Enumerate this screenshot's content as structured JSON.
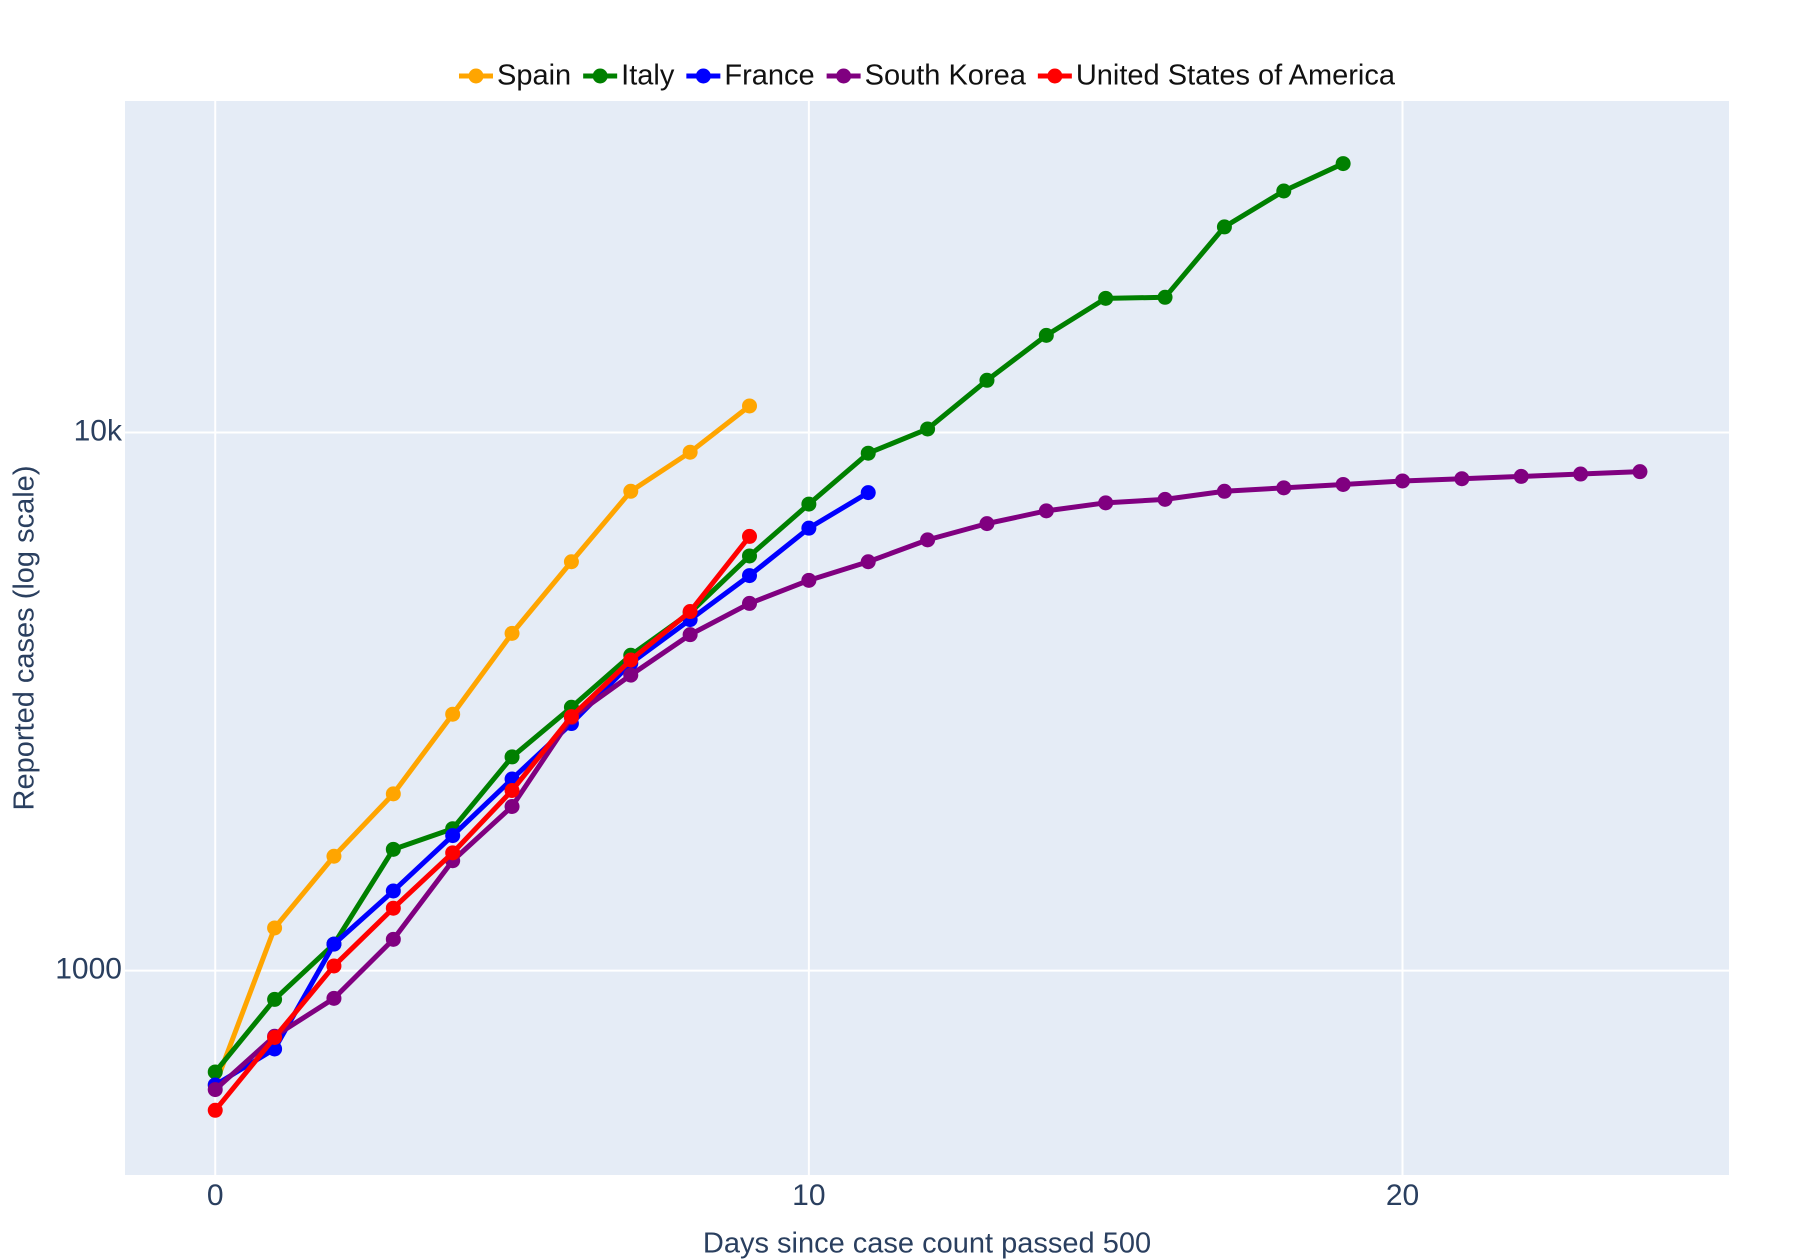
{
  "chart_data": {
    "type": "line",
    "log_y": true,
    "grid": true,
    "legend_position": "top",
    "xlabel": "Days since case count passed 500",
    "ylabel": "Reported cases (log scale)",
    "x": [
      0,
      1,
      2,
      3,
      4,
      5,
      6,
      7,
      8,
      9,
      10,
      11,
      12,
      13,
      14,
      15,
      16,
      17,
      18,
      19,
      20,
      21,
      22,
      23,
      24
    ],
    "xlim": [
      -1.52,
      25.5
    ],
    "xticks": [
      0,
      10,
      20
    ],
    "ylim": [
      417,
      41300
    ],
    "yticks": [
      1000,
      {
        "value": 10000,
        "label": "10k"
      }
    ],
    "series": [
      {
        "name": "Spain",
        "color": "#ffa500",
        "values": [
          613,
          1200,
          1631,
          2130,
          2995,
          4233,
          5751,
          7775,
          9190,
          11200,
          null,
          null,
          null,
          null,
          null,
          null,
          null,
          null,
          null,
          null,
          null,
          null,
          null,
          null,
          null
        ]
      },
      {
        "name": "Italy",
        "color": "#008000",
        "values": [
          648,
          884,
          1120,
          1680,
          1835,
          2495,
          3085,
          3854,
          4625,
          5895,
          7360,
          9150,
          10150,
          12500,
          15150,
          17750,
          17830,
          24100,
          28100,
          31600,
          null,
          null,
          null,
          null,
          null
        ]
      },
      {
        "name": "France",
        "color": "#0000ff",
        "values": [
          613,
          715,
          1120,
          1406,
          1782,
          2270,
          2878,
          3724,
          4490,
          5420,
          6640,
          7730,
          null,
          null,
          null,
          null,
          null,
          null,
          null,
          null,
          null,
          null,
          null,
          null,
          null
        ]
      },
      {
        "name": "South Korea",
        "color": "#800080",
        "values": [
          601,
          755,
          888,
          1143,
          1600,
          2018,
          2951,
          3541,
          4210,
          4812,
          5311,
          5751,
          6315,
          6770,
          7150,
          7400,
          7510,
          7775,
          7890,
          8005,
          8125,
          8205,
          8285,
          8370,
          8455
        ]
      },
      {
        "name": "United States of America",
        "color": "#ff0000",
        "values": [
          550,
          751,
          1020,
          1306,
          1655,
          2161,
          2965,
          3777,
          4647,
          6410,
          null,
          null,
          null,
          null,
          null,
          null,
          null,
          null,
          null,
          null,
          null,
          null,
          null,
          null,
          null
        ]
      }
    ]
  }
}
